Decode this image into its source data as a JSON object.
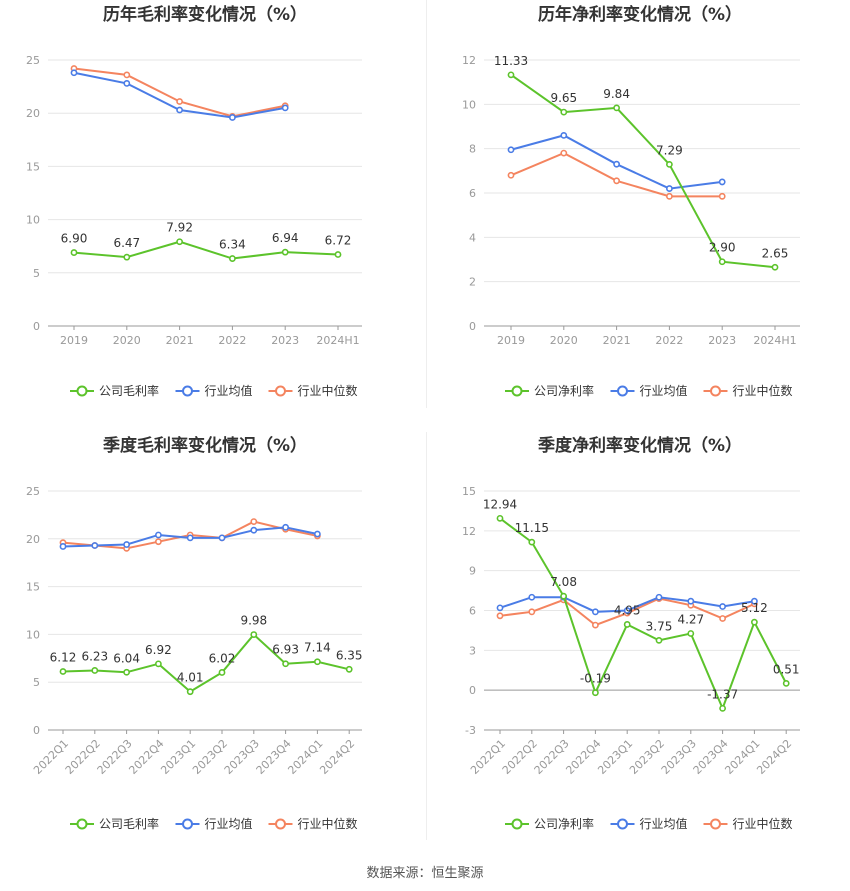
{
  "source_text": "数据来源：恒生聚源",
  "chart_data": [
    {
      "type": "line",
      "title": "历年毛利率变化情况（%）",
      "categories": [
        "2019",
        "2020",
        "2021",
        "2022",
        "2023",
        "2024H1"
      ],
      "ylim": [
        0,
        25
      ],
      "yticks": [
        0,
        5,
        10,
        15,
        20,
        25
      ],
      "grid": true,
      "legend_position": "bottom",
      "series": [
        {
          "name": "公司毛利率",
          "color": "#5cc32b",
          "labels": true,
          "values": [
            6.9,
            6.47,
            7.92,
            6.34,
            6.94,
            6.72
          ],
          "value_labels": [
            "6.90",
            "6.47",
            "7.92",
            "6.34",
            "6.94",
            "6.72"
          ]
        },
        {
          "name": "行业均值",
          "color": "#4a7ce6",
          "labels": false,
          "values": [
            23.8,
            22.8,
            20.3,
            19.6,
            20.5,
            null
          ]
        },
        {
          "name": "行业中位数",
          "color": "#f4845f",
          "labels": false,
          "values": [
            24.2,
            23.6,
            21.1,
            19.7,
            20.7,
            null
          ]
        }
      ]
    },
    {
      "type": "line",
      "title": "历年净利率变化情况（%）",
      "categories": [
        "2019",
        "2020",
        "2021",
        "2022",
        "2023",
        "2024H1"
      ],
      "ylim": [
        0,
        12
      ],
      "yticks": [
        0,
        2,
        4,
        6,
        8,
        10,
        12
      ],
      "grid": true,
      "legend_position": "bottom",
      "series": [
        {
          "name": "公司净利率",
          "color": "#5cc32b",
          "labels": true,
          "values": [
            11.33,
            9.65,
            9.84,
            7.29,
            2.9,
            2.65
          ],
          "value_labels": [
            "11.33",
            "9.65",
            "9.84",
            "7.29",
            "2.90",
            "2.65"
          ]
        },
        {
          "name": "行业均值",
          "color": "#4a7ce6",
          "labels": false,
          "values": [
            7.95,
            8.6,
            7.3,
            6.2,
            6.5,
            null
          ]
        },
        {
          "name": "行业中位数",
          "color": "#f4845f",
          "labels": false,
          "values": [
            6.8,
            7.8,
            6.55,
            5.85,
            5.85,
            null
          ]
        }
      ]
    },
    {
      "type": "line",
      "title": "季度毛利率变化情况（%）",
      "categories": [
        "2022Q1",
        "2022Q2",
        "2022Q3",
        "2022Q4",
        "2023Q1",
        "2023Q2",
        "2023Q3",
        "2023Q4",
        "2024Q1",
        "2024Q2"
      ],
      "ylim": [
        0,
        25
      ],
      "yticks": [
        0,
        5,
        10,
        15,
        20,
        25
      ],
      "grid": true,
      "legend_position": "bottom",
      "rotate_x_labels": true,
      "series": [
        {
          "name": "公司毛利率",
          "color": "#5cc32b",
          "labels": true,
          "values": [
            6.12,
            6.23,
            6.04,
            6.92,
            4.01,
            6.02,
            9.98,
            6.93,
            7.14,
            6.35
          ],
          "value_labels": [
            "6.12",
            "6.23",
            "6.04",
            "6.92",
            "4.01",
            "6.02",
            "9.98",
            "6.93",
            "7.14",
            "6.35"
          ]
        },
        {
          "name": "行业均值",
          "color": "#4a7ce6",
          "labels": false,
          "values": [
            19.2,
            19.3,
            19.4,
            20.4,
            20.1,
            20.1,
            20.9,
            21.2,
            20.5,
            null
          ]
        },
        {
          "name": "行业中位数",
          "color": "#f4845f",
          "labels": false,
          "values": [
            19.6,
            19.3,
            19.0,
            19.7,
            20.4,
            20.1,
            21.8,
            21.0,
            20.3,
            null
          ]
        }
      ]
    },
    {
      "type": "line",
      "title": "季度净利率变化情况（%）",
      "categories": [
        "2022Q1",
        "2022Q2",
        "2022Q3",
        "2022Q4",
        "2023Q1",
        "2023Q2",
        "2023Q3",
        "2023Q4",
        "2024Q1",
        "2024Q2"
      ],
      "ylim": [
        -3,
        15
      ],
      "yticks": [
        -3,
        0,
        3,
        6,
        9,
        12,
        15
      ],
      "grid": true,
      "legend_position": "bottom",
      "rotate_x_labels": true,
      "series": [
        {
          "name": "公司净利率",
          "color": "#5cc32b",
          "labels": true,
          "values": [
            12.94,
            11.15,
            7.08,
            -0.19,
            4.95,
            3.75,
            4.27,
            -1.37,
            5.12,
            0.51
          ],
          "value_labels": [
            "12.94",
            "11.15",
            "7.08",
            "-0.19",
            "4.95",
            "3.75",
            "4.27",
            "-1.37",
            "5.12",
            "0.51"
          ]
        },
        {
          "name": "行业均值",
          "color": "#4a7ce6",
          "labels": false,
          "values": [
            6.2,
            7.0,
            7.0,
            5.9,
            6.0,
            7.0,
            6.7,
            6.3,
            6.7,
            null
          ]
        },
        {
          "name": "行业中位数",
          "color": "#f4845f",
          "labels": false,
          "values": [
            5.6,
            5.9,
            6.8,
            4.9,
            5.8,
            6.9,
            6.4,
            5.4,
            6.5,
            null
          ]
        }
      ]
    }
  ]
}
